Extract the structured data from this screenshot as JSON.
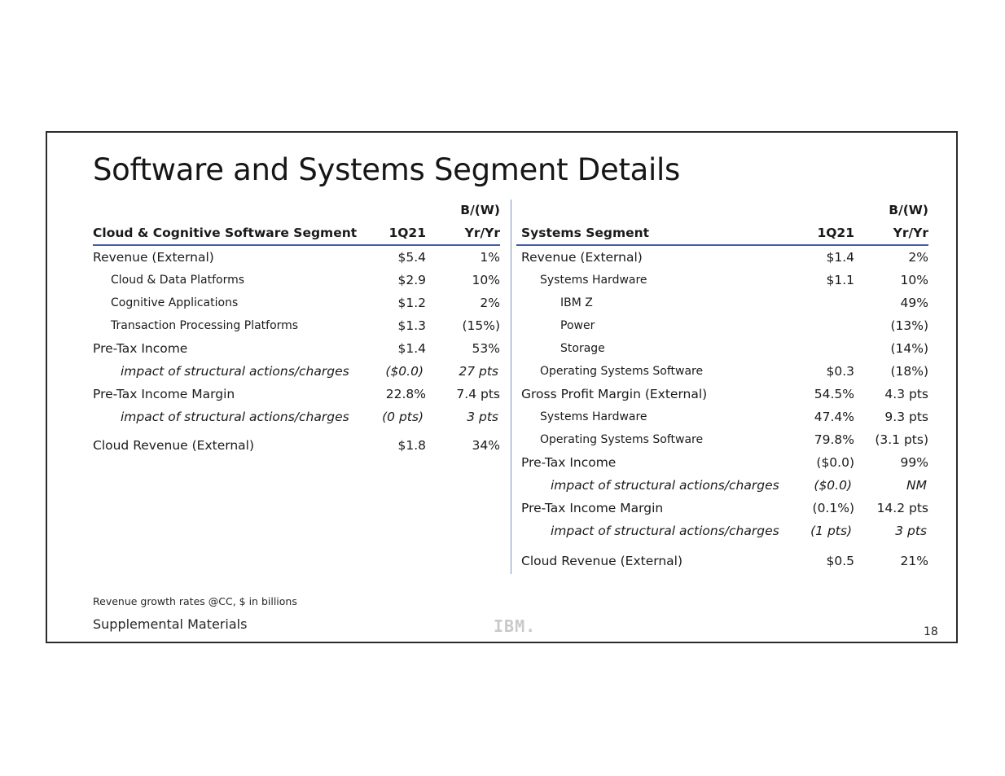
{
  "title": "Software and Systems Segment Details",
  "left": {
    "header": {
      "segment": "Cloud & Cognitive Software Segment",
      "period": "1Q21",
      "bw_top": "B/(W)",
      "bw_bottom": "Yr/Yr"
    },
    "rows": [
      {
        "label": "Revenue (External)",
        "v1": "$5.4",
        "v2": "1%"
      },
      {
        "label": "Cloud & Data Platforms",
        "v1": "$2.9",
        "v2": "10%"
      },
      {
        "label": "Cognitive Applications",
        "v1": "$1.2",
        "v2": "2%"
      },
      {
        "label": "Transaction Processing Platforms",
        "v1": "$1.3",
        "v2": "(15%)"
      },
      {
        "label": "Pre-Tax Income",
        "v1": "$1.4",
        "v2": "53%"
      },
      {
        "label": "impact of structural actions/charges",
        "v1": "($0.0)",
        "v2": "27 pts"
      },
      {
        "label": "Pre-Tax Income Margin",
        "v1": "22.8%",
        "v2": "7.4 pts"
      },
      {
        "label": "impact of structural actions/charges",
        "v1": "(0 pts)",
        "v2": "3 pts"
      },
      {
        "label": "Cloud Revenue (External)",
        "v1": "$1.8",
        "v2": "34%"
      }
    ]
  },
  "right": {
    "header": {
      "segment": "Systems Segment",
      "period": "1Q21",
      "bw_top": "B/(W)",
      "bw_bottom": "Yr/Yr"
    },
    "rows": [
      {
        "label": "Revenue (External)",
        "v1": "$1.4",
        "v2": "2%"
      },
      {
        "label": "Systems Hardware",
        "v1": "$1.1",
        "v2": "10%"
      },
      {
        "label": "IBM Z",
        "v1": "",
        "v2": "49%"
      },
      {
        "label": "Power",
        "v1": "",
        "v2": "(13%)"
      },
      {
        "label": "Storage",
        "v1": "",
        "v2": "(14%)"
      },
      {
        "label": "Operating Systems Software",
        "v1": "$0.3",
        "v2": "(18%)"
      },
      {
        "label": "Gross Profit Margin (External)",
        "v1": "54.5%",
        "v2": "4.3 pts"
      },
      {
        "label": "Systems Hardware",
        "v1": "47.4%",
        "v2": "9.3 pts"
      },
      {
        "label": "Operating Systems Software",
        "v1": "79.8%",
        "v2": "(3.1 pts)"
      },
      {
        "label": "Pre-Tax Income",
        "v1": "($0.0)",
        "v2": "99%"
      },
      {
        "label": "impact of structural actions/charges",
        "v1": "($0.0)",
        "v2": "NM"
      },
      {
        "label": "Pre-Tax Income Margin",
        "v1": "(0.1%)",
        "v2": "14.2 pts"
      },
      {
        "label": "impact of structural actions/charges",
        "v1": "(1 pts)",
        "v2": "3 pts"
      },
      {
        "label": "Cloud Revenue (External)",
        "v1": "$0.5",
        "v2": "21%"
      }
    ]
  },
  "footnote": "Revenue growth rates @CC, $ in billions",
  "supplemental": "Supplemental Materials",
  "logo": "IBM.",
  "page_number": "18"
}
